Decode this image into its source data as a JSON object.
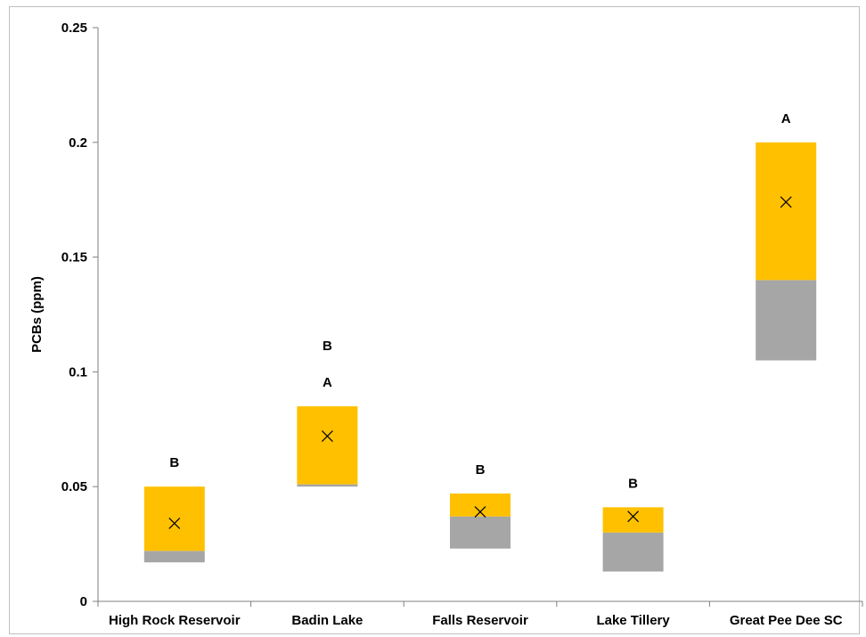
{
  "chart_data": {
    "type": "bar",
    "subtype": "floating-stacked-range",
    "title": "",
    "xlabel": "",
    "ylabel": "PCBs (ppm)",
    "ylim": [
      0,
      0.25
    ],
    "yticks": [
      "0",
      "0.05",
      "0.1",
      "0.15",
      "0.2",
      "0.25"
    ],
    "ytick_values": [
      0,
      0.05,
      0.1,
      0.15,
      0.2,
      0.25
    ],
    "grid": false,
    "legend": "none",
    "colors": {
      "lower": "#a6a6a6",
      "upper": "#ffc000",
      "marker": "#000000",
      "axis": "#7f7f7f"
    },
    "categories": [
      "High Rock Reservoir",
      "Badin Lake",
      "Falls Reservoir",
      "Lake Tillery",
      "Great Pee Dee SC"
    ],
    "series": [
      {
        "name": "",
        "role": "lower segment",
        "from": [
          0.017,
          0.05,
          0.023,
          0.013,
          0.105
        ],
        "to": [
          0.022,
          0.051,
          0.037,
          0.03,
          0.14
        ]
      },
      {
        "name": "",
        "role": "upper segment",
        "from": [
          0.022,
          0.051,
          0.037,
          0.03,
          0.14
        ],
        "to": [
          0.05,
          0.085,
          0.047,
          0.041,
          0.2
        ]
      },
      {
        "name": "",
        "role": "mean marker",
        "values": [
          0.034,
          0.072,
          0.039,
          0.037,
          0.174
        ]
      }
    ],
    "letter_labels": [
      {
        "category": "High Rock Reservoir",
        "letters": [
          "B"
        ]
      },
      {
        "category": "Badin Lake",
        "letters": [
          "B",
          "A"
        ]
      },
      {
        "category": "Falls Reservoir",
        "letters": [
          "B"
        ]
      },
      {
        "category": "Lake Tillery",
        "letters": [
          "B"
        ]
      },
      {
        "category": "Great Pee Dee SC",
        "letters": [
          "A"
        ]
      }
    ]
  }
}
